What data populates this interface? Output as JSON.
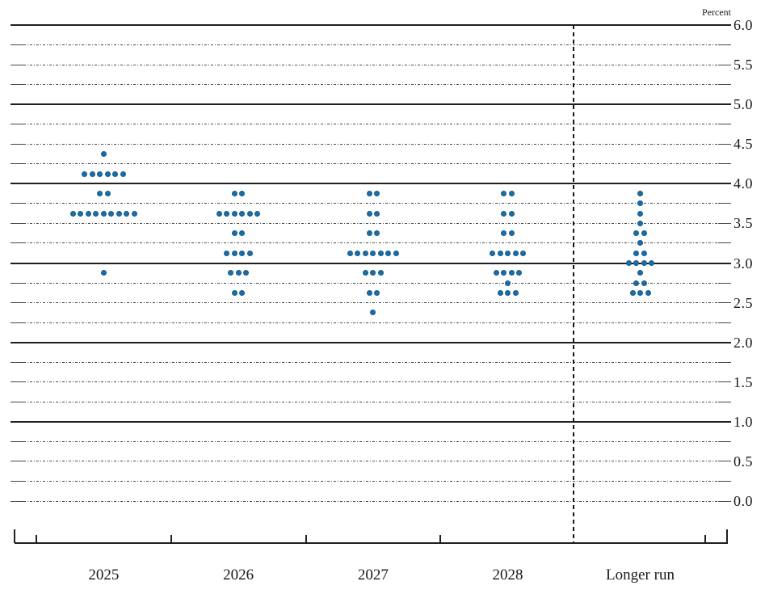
{
  "chart_data": {
    "type": "scatter",
    "subtype": "fomc-dot-plot",
    "unit_label": "Percent",
    "ylabel": "Percent",
    "ylim": [
      0.0,
      6.0
    ],
    "y_grid_interval": 0.25,
    "y_label_interval": 0.5,
    "y_axis_labels": [
      "6.0",
      "5.5",
      "5.0",
      "4.5",
      "4.0",
      "3.5",
      "3.0",
      "2.5",
      "2.0",
      "1.5",
      "1.0",
      "0.5",
      "0.0"
    ],
    "solid_gridline_values": [
      6.0,
      5.0,
      4.0,
      3.0,
      2.0,
      1.0
    ],
    "grid": true,
    "legend": "none",
    "dot_color": "#1b6da7",
    "dot_edge_color": "#135c8e",
    "categories": [
      "2025",
      "2026",
      "2027",
      "2028",
      "Longer run"
    ],
    "separator": {
      "style": "dashed-vertical",
      "between": [
        "2028",
        "Longer run"
      ]
    },
    "columns": [
      {
        "label": "2025",
        "dots": [
          {
            "rate": 4.375,
            "count": 1
          },
          {
            "rate": 4.125,
            "count": 6
          },
          {
            "rate": 3.875,
            "count": 2
          },
          {
            "rate": 3.625,
            "count": 9
          },
          {
            "rate": 2.875,
            "count": 1
          }
        ]
      },
      {
        "label": "2026",
        "dots": [
          {
            "rate": 3.875,
            "count": 2
          },
          {
            "rate": 3.625,
            "count": 6
          },
          {
            "rate": 3.375,
            "count": 2
          },
          {
            "rate": 3.125,
            "count": 4
          },
          {
            "rate": 2.875,
            "count": 3
          },
          {
            "rate": 2.625,
            "count": 2
          }
        ]
      },
      {
        "label": "2027",
        "dots": [
          {
            "rate": 3.875,
            "count": 2
          },
          {
            "rate": 3.625,
            "count": 2
          },
          {
            "rate": 3.375,
            "count": 2
          },
          {
            "rate": 3.125,
            "count": 7
          },
          {
            "rate": 2.875,
            "count": 3
          },
          {
            "rate": 2.625,
            "count": 2
          },
          {
            "rate": 2.375,
            "count": 1
          }
        ]
      },
      {
        "label": "2028",
        "dots": [
          {
            "rate": 3.875,
            "count": 2
          },
          {
            "rate": 3.625,
            "count": 2
          },
          {
            "rate": 3.375,
            "count": 2
          },
          {
            "rate": 3.125,
            "count": 5
          },
          {
            "rate": 2.875,
            "count": 4
          },
          {
            "rate": 2.75,
            "count": 1
          },
          {
            "rate": 2.625,
            "count": 3
          }
        ]
      },
      {
        "label": "Longer run",
        "dots": [
          {
            "rate": 3.875,
            "count": 1
          },
          {
            "rate": 3.75,
            "count": 1
          },
          {
            "rate": 3.625,
            "count": 1
          },
          {
            "rate": 3.5,
            "count": 1
          },
          {
            "rate": 3.375,
            "count": 2
          },
          {
            "rate": 3.25,
            "count": 1
          },
          {
            "rate": 3.125,
            "count": 2
          },
          {
            "rate": 3.0,
            "count": 4
          },
          {
            "rate": 2.875,
            "count": 1
          },
          {
            "rate": 2.75,
            "count": 2
          },
          {
            "rate": 2.625,
            "count": 3
          }
        ]
      }
    ]
  }
}
